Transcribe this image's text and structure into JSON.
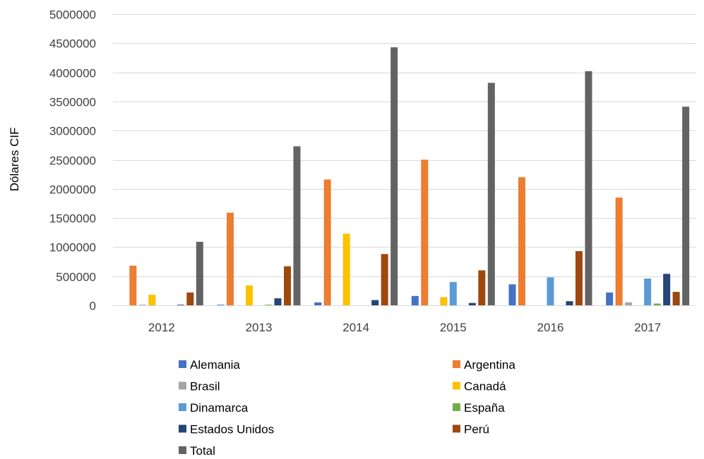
{
  "chart_data": {
    "type": "bar",
    "title": "",
    "xlabel": "",
    "ylabel": "Dólares CIF",
    "ylim": [
      0,
      5000000
    ],
    "yticks": [
      0,
      500000,
      1000000,
      1500000,
      2000000,
      2500000,
      3000000,
      3500000,
      4000000,
      4500000,
      5000000
    ],
    "grid": true,
    "legend_position": "bottom",
    "categories": [
      "2012",
      "2013",
      "2014",
      "2015",
      "2016",
      "2017"
    ],
    "series": [
      {
        "name": "Alemania",
        "color": "#4472C4",
        "values": [
          0,
          10000,
          50000,
          160000,
          360000,
          220000
        ]
      },
      {
        "name": "Argentina",
        "color": "#ED7D31",
        "values": [
          680000,
          1590000,
          2160000,
          2500000,
          2200000,
          1850000
        ]
      },
      {
        "name": "Brasil",
        "color": "#A5A5A5",
        "values": [
          10000,
          0,
          0,
          0,
          0,
          50000
        ]
      },
      {
        "name": "Canadá",
        "color": "#FFC000",
        "values": [
          180000,
          340000,
          1230000,
          140000,
          0,
          0
        ]
      },
      {
        "name": "Dinamarca",
        "color": "#5B9BD5",
        "values": [
          0,
          0,
          0,
          400000,
          480000,
          460000
        ]
      },
      {
        "name": "España",
        "color": "#70AD47",
        "values": [
          0,
          10000,
          0,
          0,
          0,
          30000
        ]
      },
      {
        "name": "Estados Unidos",
        "color": "#264478",
        "values": [
          10000,
          120000,
          90000,
          40000,
          70000,
          540000
        ]
      },
      {
        "name": "Perú",
        "color": "#9E480E",
        "values": [
          220000,
          670000,
          880000,
          600000,
          930000,
          230000
        ]
      },
      {
        "name": "Total",
        "color": "#636363",
        "values": [
          1090000,
          2730000,
          4430000,
          3820000,
          4020000,
          3410000
        ]
      }
    ]
  }
}
